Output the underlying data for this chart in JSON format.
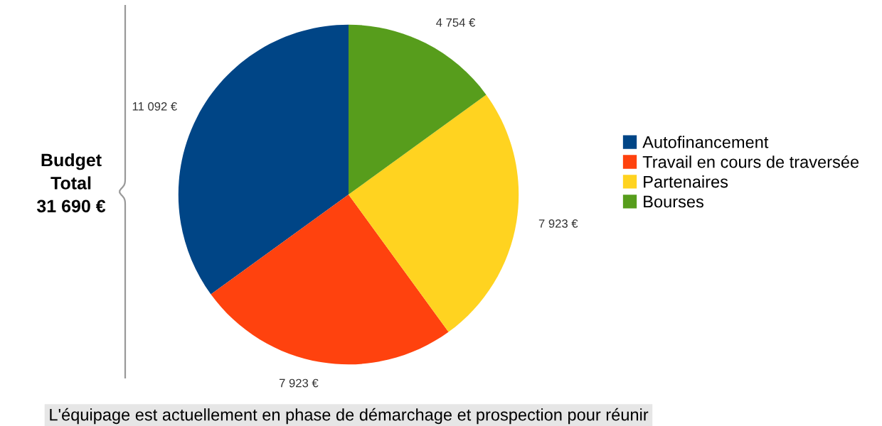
{
  "chart_data": {
    "type": "pie",
    "categories": [
      "Autofinancement",
      "Travail en cours de traversée",
      "Partenaires",
      "Bourses"
    ],
    "values": [
      11092,
      7923,
      7923,
      4754
    ],
    "colors": [
      "#004586",
      "#ff420e",
      "#ffd320",
      "#579d1c"
    ],
    "value_labels": [
      "11 092 €",
      "7 923 €",
      "7 923 €",
      "4 754 €"
    ],
    "legend": "right",
    "annotations": [
      "Budget\nTotal\n31 690 €",
      "L'équipage est actuellement en phase de démarchage et prospection pour réunir"
    ]
  }
}
